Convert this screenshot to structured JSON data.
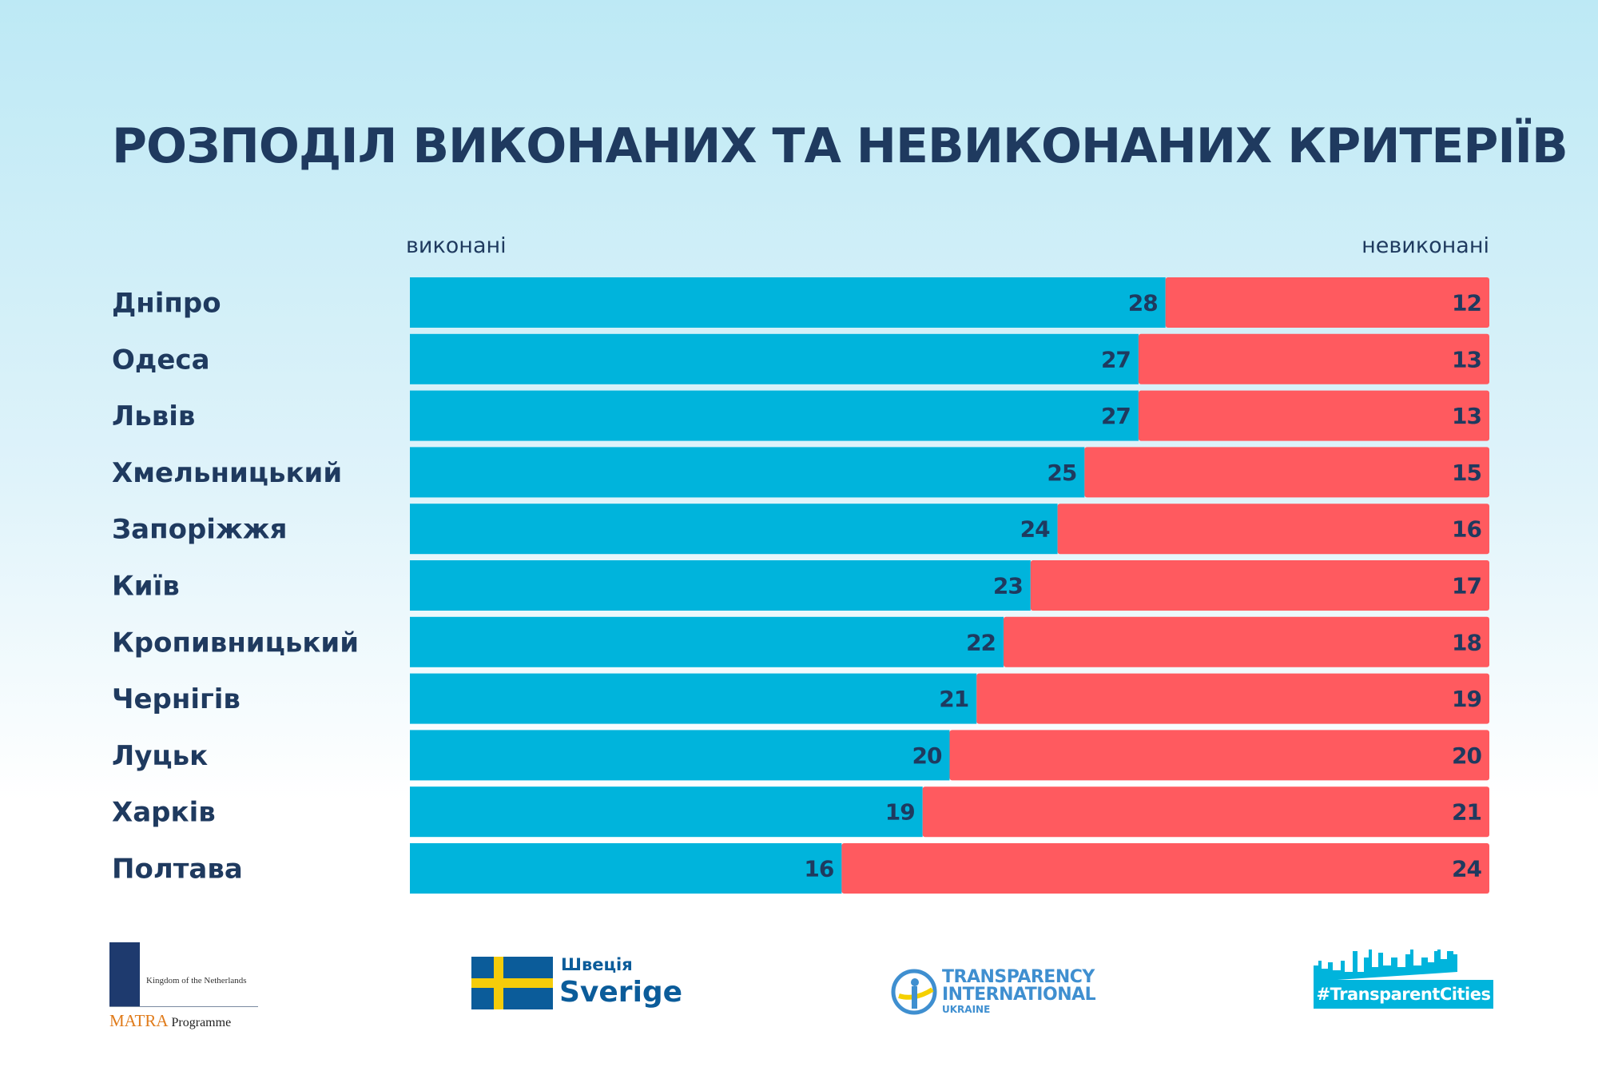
{
  "chart_data": {
    "type": "bar",
    "stacked": true,
    "orientation": "horizontal",
    "title": "РОЗПОДІЛ ВИКОНАНИХ ТА НЕВИКОНАНИХ КРИТЕРІЇВ",
    "categories": [
      "Дніпро",
      "Одеса",
      "Львів",
      "Хмельницький",
      "Запоріжжя",
      "Київ",
      "Кропивницький",
      "Чернігів",
      "Луцьк",
      "Харків",
      "Полтава"
    ],
    "series": [
      {
        "name": "виконані",
        "color": "#00b4dc",
        "values": [
          28,
          27,
          27,
          25,
          24,
          23,
          22,
          21,
          20,
          19,
          16
        ]
      },
      {
        "name": "невиконані",
        "color": "#ff5a5f",
        "values": [
          12,
          13,
          13,
          15,
          16,
          17,
          18,
          19,
          20,
          21,
          24
        ]
      }
    ],
    "xlim": [
      0,
      40
    ],
    "grid": false,
    "legend": "top"
  },
  "logos": {
    "netherlands": {
      "line1": "Kingdom of the Netherlands",
      "brand": "MATRA",
      "line2": "Programme"
    },
    "sweden": {
      "line1": "Швеція",
      "line2": "Sverige"
    },
    "ti": {
      "line1": "TRANSPARENCY",
      "line2": "INTERNATIONAL",
      "line3": "UKRAINE"
    },
    "tc": {
      "tag": "#TransparentCities"
    }
  }
}
